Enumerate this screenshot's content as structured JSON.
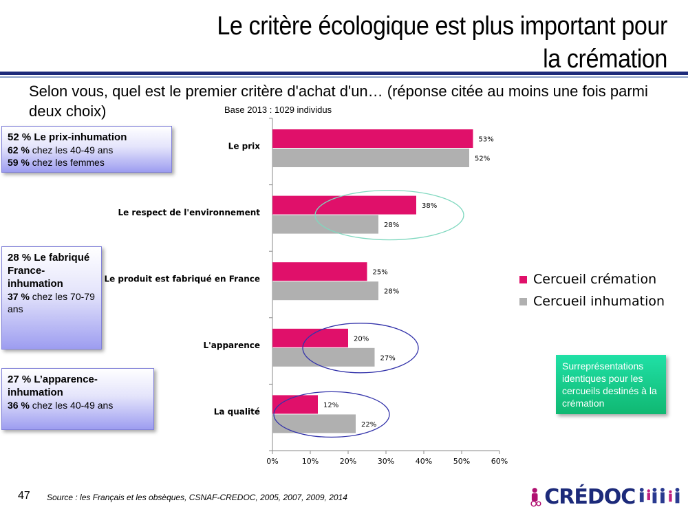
{
  "slide": {
    "title": "Le critère écologique est plus important pour la crémation",
    "question": "Selon vous, quel est le premier critère d'achat d'un… (réponse citée au moins une fois parmi deux choix)",
    "base_note": "Base 2013 : 1029 individus",
    "page_number": "47",
    "source": "Source : les Français et les obsèques, CSNAF-CREDOC, 2005, 2007, 2009, 2014",
    "logo_text": "CRÉDOC"
  },
  "info_boxes": [
    {
      "head": "52 % Le prix-inhumation",
      "lines": [
        {
          "pct": "62 %",
          "text": " chez les 40-49 ans"
        },
        {
          "pct": "59 %",
          "text": " chez les femmes"
        }
      ]
    },
    {
      "head": "28 % Le fabriqué France-inhumation",
      "lines": [
        {
          "pct": "37 %",
          "text": " chez les 70-79 ans"
        }
      ]
    },
    {
      "head": "27 % L’apparence-inhumation",
      "lines": [
        {
          "pct": "36 %",
          "text": " chez les 40-49 ans"
        }
      ]
    }
  ],
  "note_box": "Surreprésentations identiques pour les cercueils destinés à la crémation",
  "colors": {
    "cremation": "#e0106a",
    "inhumation": "#b0b0b0",
    "rule": "#1c2a7a",
    "green_ellipse": "#7fd8bf",
    "blue_ellipse": "#3333aa"
  },
  "chart_data": {
    "type": "bar",
    "orientation": "horizontal",
    "categories": [
      "Le prix",
      "Le respect de l'environnement",
      "Le produit est fabriqué en France",
      "L'apparence",
      "La qualité"
    ],
    "series": [
      {
        "name": "Cercueil crémation",
        "values": [
          53,
          38,
          25,
          20,
          12
        ],
        "color": "#e0106a"
      },
      {
        "name": "Cercueil inhumation",
        "values": [
          52,
          28,
          28,
          27,
          22
        ],
        "color": "#b0b0b0"
      }
    ],
    "value_labels": {
      "Cercueil crémation": [
        "53%",
        "38%",
        "25%",
        "20%",
        "12%"
      ],
      "Cercueil inhumation": [
        "52%",
        "28%",
        "28%",
        "27%",
        "22%"
      ]
    },
    "x_ticks": [
      0,
      10,
      20,
      30,
      40,
      50,
      60
    ],
    "x_tick_labels": [
      "0%",
      "10%",
      "20%",
      "30%",
      "40%",
      "50%",
      "60%"
    ],
    "xlim": [
      0,
      60
    ],
    "legend_position": "right",
    "highlights": [
      {
        "category": "Le respect de l'environnement",
        "color": "green"
      },
      {
        "category": "L'apparence",
        "color": "blue"
      },
      {
        "category": "La qualité",
        "color": "blue"
      }
    ]
  }
}
